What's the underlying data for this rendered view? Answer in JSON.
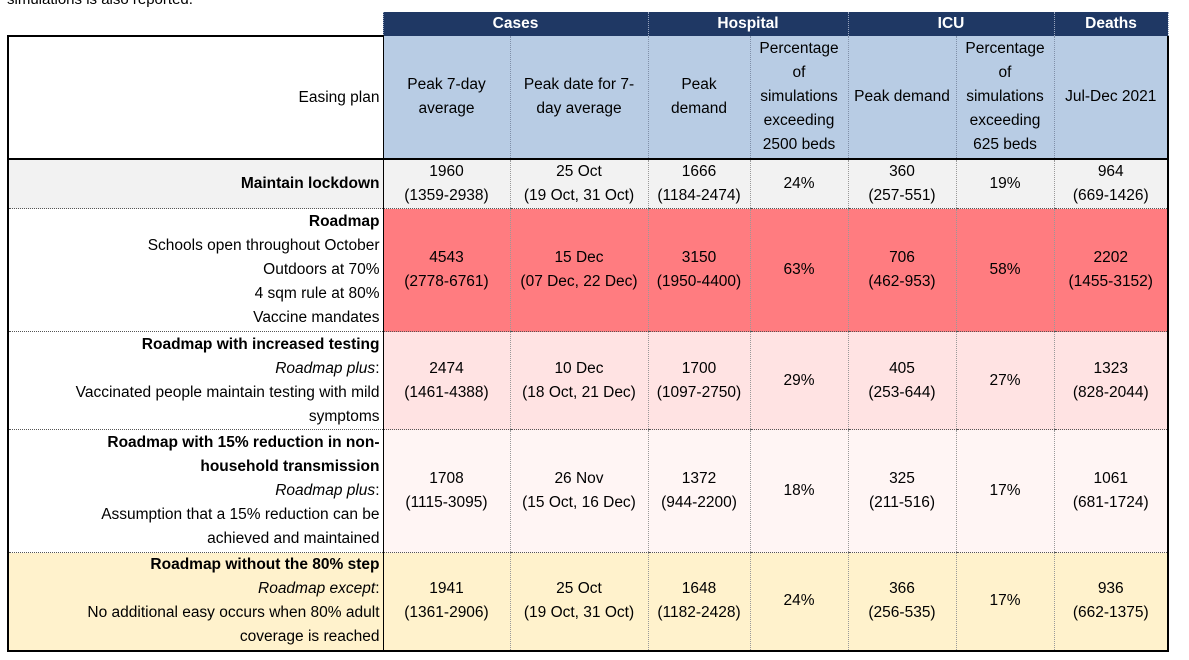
{
  "caption": "simulations is also reported.",
  "groups": {
    "cases": "Cases",
    "hospital": "Hospital",
    "icu": "ICU",
    "deaths": "Deaths"
  },
  "subheaders": {
    "easing_plan": "Easing plan",
    "cases_peak": "Peak 7-day average",
    "cases_date": "Peak date for 7-day average",
    "hosp_peak": "Peak demand",
    "hosp_pct": "Percentage of simulations exceeding 2500 beds",
    "icu_peak": "Peak demand",
    "icu_pct": "Percentage of simulations exceeding 625 beds",
    "deaths": "Jul-Dec 2021"
  },
  "rows": [
    {
      "title": "Maintain lockdown",
      "lines": [],
      "cases_peak": "1960",
      "cases_peak_ci": "(1359-2938)",
      "cases_date": "25 Oct",
      "cases_date_ci": "(19 Oct, 31 Oct)",
      "hosp_peak": "1666",
      "hosp_peak_ci": "(1184-2474)",
      "hosp_pct": "24%",
      "icu_peak": "360",
      "icu_peak_ci": "(257-551)",
      "icu_pct": "19%",
      "deaths": "964",
      "deaths_ci": "(669-1426)"
    },
    {
      "title": "Roadmap",
      "lines": [
        "Schools open throughout October",
        "Outdoors at 70%",
        "4 sqm rule at 80%",
        "Vaccine mandates"
      ],
      "cases_peak": "4543",
      "cases_peak_ci": "(2778-6761)",
      "cases_date": "15 Dec",
      "cases_date_ci": "(07 Dec, 22 Dec)",
      "hosp_peak": "3150",
      "hosp_peak_ci": "(1950-4400)",
      "hosp_pct": "63%",
      "icu_peak": "706",
      "icu_peak_ci": "(462-953)",
      "icu_pct": "58%",
      "deaths": "2202",
      "deaths_ci": "(1455-3152)"
    },
    {
      "title": "Roadmap with increased testing",
      "italic": "Roadmap plus",
      "lines": [
        "Vaccinated people maintain testing with mild",
        "symptoms"
      ],
      "cases_peak": "2474",
      "cases_peak_ci": "(1461-4388)",
      "cases_date": "10 Dec",
      "cases_date_ci": "(18 Oct, 21 Dec)",
      "hosp_peak": "1700",
      "hosp_peak_ci": "(1097-2750)",
      "hosp_pct": "29%",
      "icu_peak": "405",
      "icu_peak_ci": "(253-644)",
      "icu_pct": "27%",
      "deaths": "1323",
      "deaths_ci": "(828-2044)"
    },
    {
      "title": "Roadmap with 15% reduction in non-household transmission",
      "italic": "Roadmap plus",
      "lines": [
        "Assumption that a 15% reduction can be",
        "achieved and maintained"
      ],
      "cases_peak": "1708",
      "cases_peak_ci": "(1115-3095)",
      "cases_date": "26 Nov",
      "cases_date_ci": "(15 Oct, 16 Dec)",
      "hosp_peak": "1372",
      "hosp_peak_ci": "(944-2200)",
      "hosp_pct": "18%",
      "icu_peak": "325",
      "icu_peak_ci": "(211-516)",
      "icu_pct": "17%",
      "deaths": "1061",
      "deaths_ci": "(681-1724)"
    },
    {
      "title": "Roadmap without the 80% step",
      "italic": "Roadmap except",
      "lines": [
        "No additional easy occurs when 80% adult",
        "coverage is reached"
      ],
      "cases_peak": "1941",
      "cases_peak_ci": "(1361-2906)",
      "cases_date": "25 Oct",
      "cases_date_ci": "(19 Oct, 31 Oct)",
      "hosp_peak": "1648",
      "hosp_peak_ci": "(1182-2428)",
      "hosp_pct": "24%",
      "icu_peak": "366",
      "icu_peak_ci": "(256-535)",
      "icu_pct": "17%",
      "deaths": "936",
      "deaths_ci": "(662-1375)"
    }
  ]
}
